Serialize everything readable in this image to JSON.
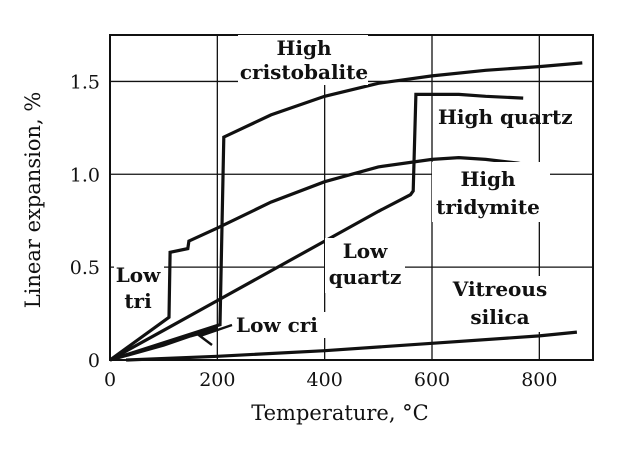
{
  "chart_data": {
    "type": "line",
    "xlabel": "Temperature, °C",
    "ylabel": "Linear expansion, %",
    "xlim": [
      0,
      900
    ],
    "ylim": [
      0,
      1.75
    ],
    "x_ticks": [
      "0",
      "200",
      "400",
      "600",
      "800"
    ],
    "y_ticks": [
      "0",
      "0.5",
      "1.0",
      "1.5"
    ],
    "x_tick_values": [
      0,
      200,
      400,
      600,
      800
    ],
    "y_tick_values": [
      0,
      0.5,
      1.0,
      1.5
    ],
    "grid": true,
    "series": [
      {
        "name": "Cristobalite",
        "points": [
          [
            0,
            0
          ],
          [
            205,
            0.19
          ],
          [
            212,
            1.2
          ],
          [
            300,
            1.32
          ],
          [
            400,
            1.42
          ],
          [
            500,
            1.49
          ],
          [
            600,
            1.53
          ],
          [
            700,
            1.56
          ],
          [
            800,
            1.58
          ],
          [
            880,
            1.6
          ]
        ]
      },
      {
        "name": "Quartz",
        "points": [
          [
            0,
            0
          ],
          [
            100,
            0.16
          ],
          [
            200,
            0.32
          ],
          [
            300,
            0.48
          ],
          [
            400,
            0.64
          ],
          [
            500,
            0.8
          ],
          [
            560,
            0.89
          ],
          [
            565,
            0.91
          ],
          [
            570,
            1.43
          ],
          [
            650,
            1.43
          ],
          [
            700,
            1.42
          ],
          [
            770,
            1.41
          ]
        ]
      },
      {
        "name": "Tridymite",
        "points": [
          [
            0,
            0
          ],
          [
            110,
            0.23
          ],
          [
            112,
            0.58
          ],
          [
            145,
            0.6
          ],
          [
            147,
            0.64
          ],
          [
            200,
            0.71
          ],
          [
            300,
            0.85
          ],
          [
            400,
            0.96
          ],
          [
            500,
            1.04
          ],
          [
            600,
            1.08
          ],
          [
            650,
            1.09
          ],
          [
            700,
            1.08
          ],
          [
            760,
            1.06
          ],
          [
            795,
            1.04
          ]
        ]
      },
      {
        "name": "Low cri",
        "points": [
          [
            0,
            0
          ],
          [
            100,
            0.08
          ],
          [
            150,
            0.13
          ],
          [
            200,
            0.17
          ]
        ]
      },
      {
        "name": "Vitreous silica",
        "points": [
          [
            30,
            0
          ],
          [
            200,
            0.02
          ],
          [
            400,
            0.05
          ],
          [
            600,
            0.09
          ],
          [
            800,
            0.13
          ],
          [
            870,
            0.15
          ]
        ]
      }
    ],
    "annotations": {
      "high_cristobalite_1": "High",
      "high_cristobalite_2": "cristobalite",
      "high_quartz": "High  quartz",
      "high_tridymite_1": "High",
      "high_tridymite_2": "tridymite",
      "low_quartz_1": "Low",
      "low_quartz_2": "quartz",
      "low_tri_1": "Low",
      "low_tri_2": "tri",
      "low_cri": "Low  cri",
      "vitreous_1": "Vitreous",
      "vitreous_2": "silica"
    }
  }
}
